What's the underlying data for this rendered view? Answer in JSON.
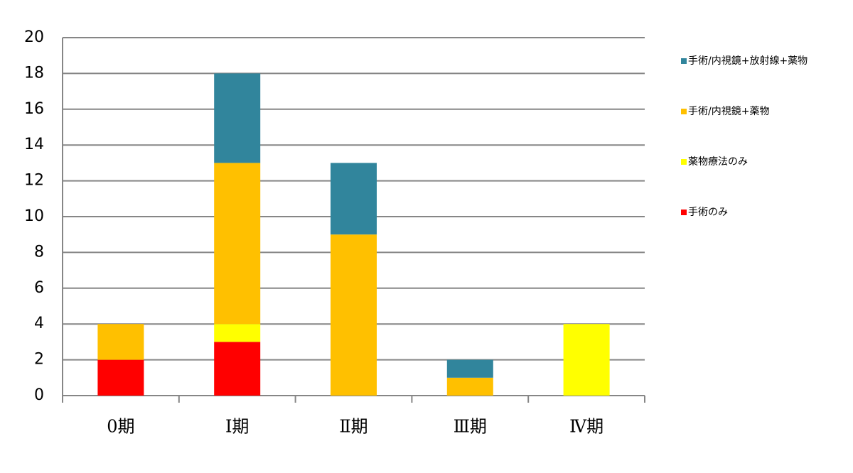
{
  "chart_data": {
    "type": "stacked_bar",
    "categories": [
      "0期",
      "Ⅰ期",
      "Ⅱ期",
      "Ⅲ期",
      "Ⅳ期"
    ],
    "series": [
      {
        "name": "手術のみ",
        "color": "#ff0000",
        "values": [
          2,
          3,
          0,
          0,
          0
        ]
      },
      {
        "name": "薬物療法のみ",
        "color": "#ffff00",
        "values": [
          0,
          1,
          0,
          0,
          4
        ]
      },
      {
        "name": "手術/内視鏡+薬物",
        "color": "#ffc000",
        "values": [
          2,
          9,
          9,
          1,
          0
        ]
      },
      {
        "name": "手術/内視鏡+放射線+薬物",
        "color": "#31859c",
        "values": [
          0,
          5,
          4,
          1,
          0
        ]
      }
    ],
    "ylim": [
      0,
      20
    ],
    "yticks": [
      0,
      2,
      4,
      6,
      8,
      10,
      12,
      14,
      16,
      18,
      20
    ],
    "grid": true,
    "legend": "right"
  }
}
